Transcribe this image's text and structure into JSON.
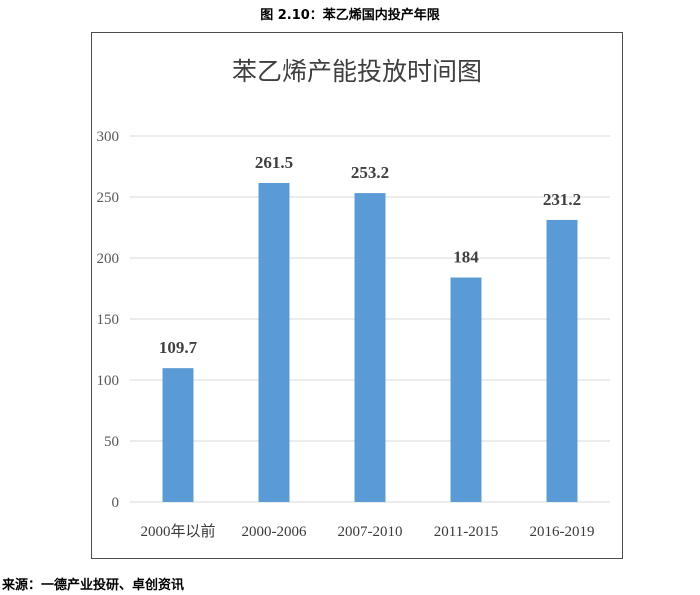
{
  "caption": "图 2.10：苯乙烯国内投产年限",
  "source": "来源：一德产业投研、卓创资讯",
  "chart_data": {
    "type": "bar",
    "title": "苯乙烯产能投放时间图",
    "xlabel": "",
    "ylabel": "",
    "categories": [
      "2000年以前",
      "2000-2006",
      "2007-2010",
      "2011-2015",
      "2016-2019"
    ],
    "values": [
      109.7,
      261.5,
      253.2,
      184,
      231.2
    ],
    "value_labels": [
      "109.7",
      "261.5",
      "253.2",
      "184",
      "231.2"
    ],
    "ylim": [
      0,
      300
    ],
    "yticks": [
      0,
      50,
      100,
      150,
      200,
      250,
      300
    ],
    "grid": true,
    "legend": "none",
    "bar_color": "#5b9bd5",
    "grid_color": "#d9d9d9"
  }
}
